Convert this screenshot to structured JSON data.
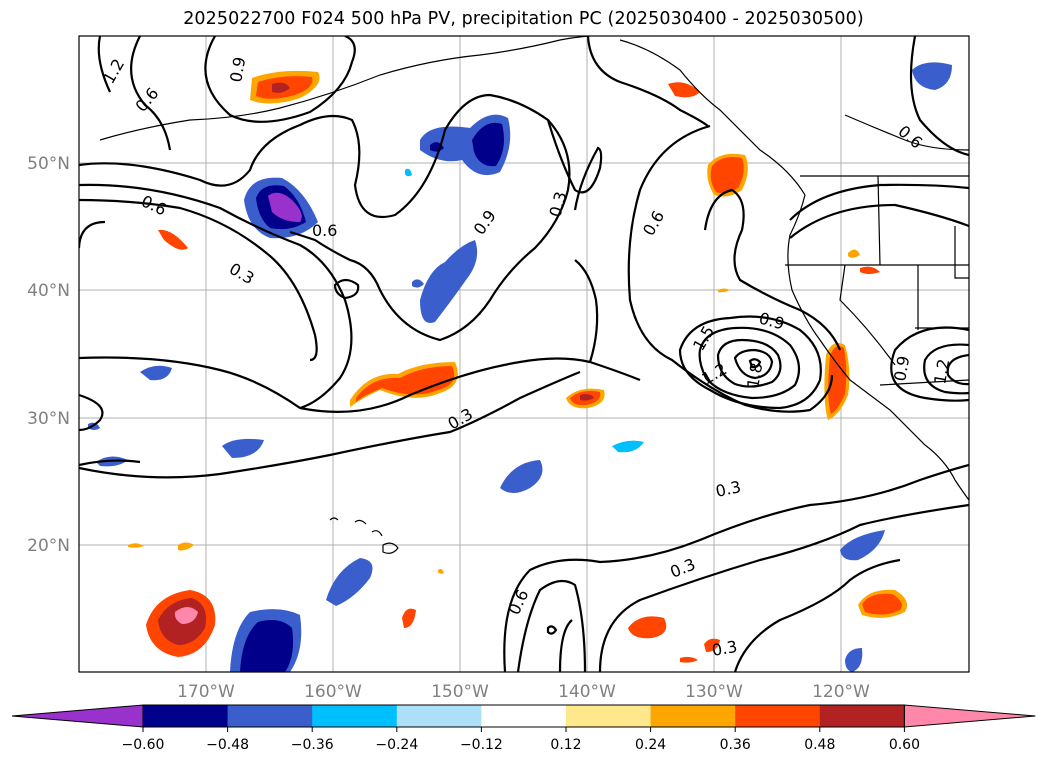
{
  "title": "2025022700 F024 500 hPa PV, precipitation PC (2025030400 - 2025030500)",
  "lat_labels": [
    "50°N",
    "40°N",
    "30°N",
    "20°N"
  ],
  "lon_labels": [
    "170°W",
    "160°W",
    "150°W",
    "140°W",
    "130°W",
    "120°W"
  ],
  "colorbar": {
    "ticks": [
      "−0.60",
      "−0.48",
      "−0.36",
      "−0.24",
      "−0.12",
      "0.12",
      "0.24",
      "0.36",
      "0.48",
      "0.60"
    ],
    "colors": [
      "#9932CC",
      "#00008B",
      "#3A5FCD",
      "#00BFFF",
      "#ADDFF8",
      "#FFFFFF",
      "#FFE88C",
      "#FFA500",
      "#FF4500",
      "#B22222",
      "#FF88AA"
    ]
  },
  "contour_labels": [
    "1.2",
    "0.6",
    "0.9",
    "0.6",
    "0.6",
    "0.3",
    "0.9",
    "0.3",
    "0.6",
    "0.9",
    "1.5",
    "1.2",
    "1.8",
    "0.3",
    "0.3",
    "0.3",
    "0.6",
    "0.3",
    "0.6",
    "0.9",
    "1.2"
  ]
}
